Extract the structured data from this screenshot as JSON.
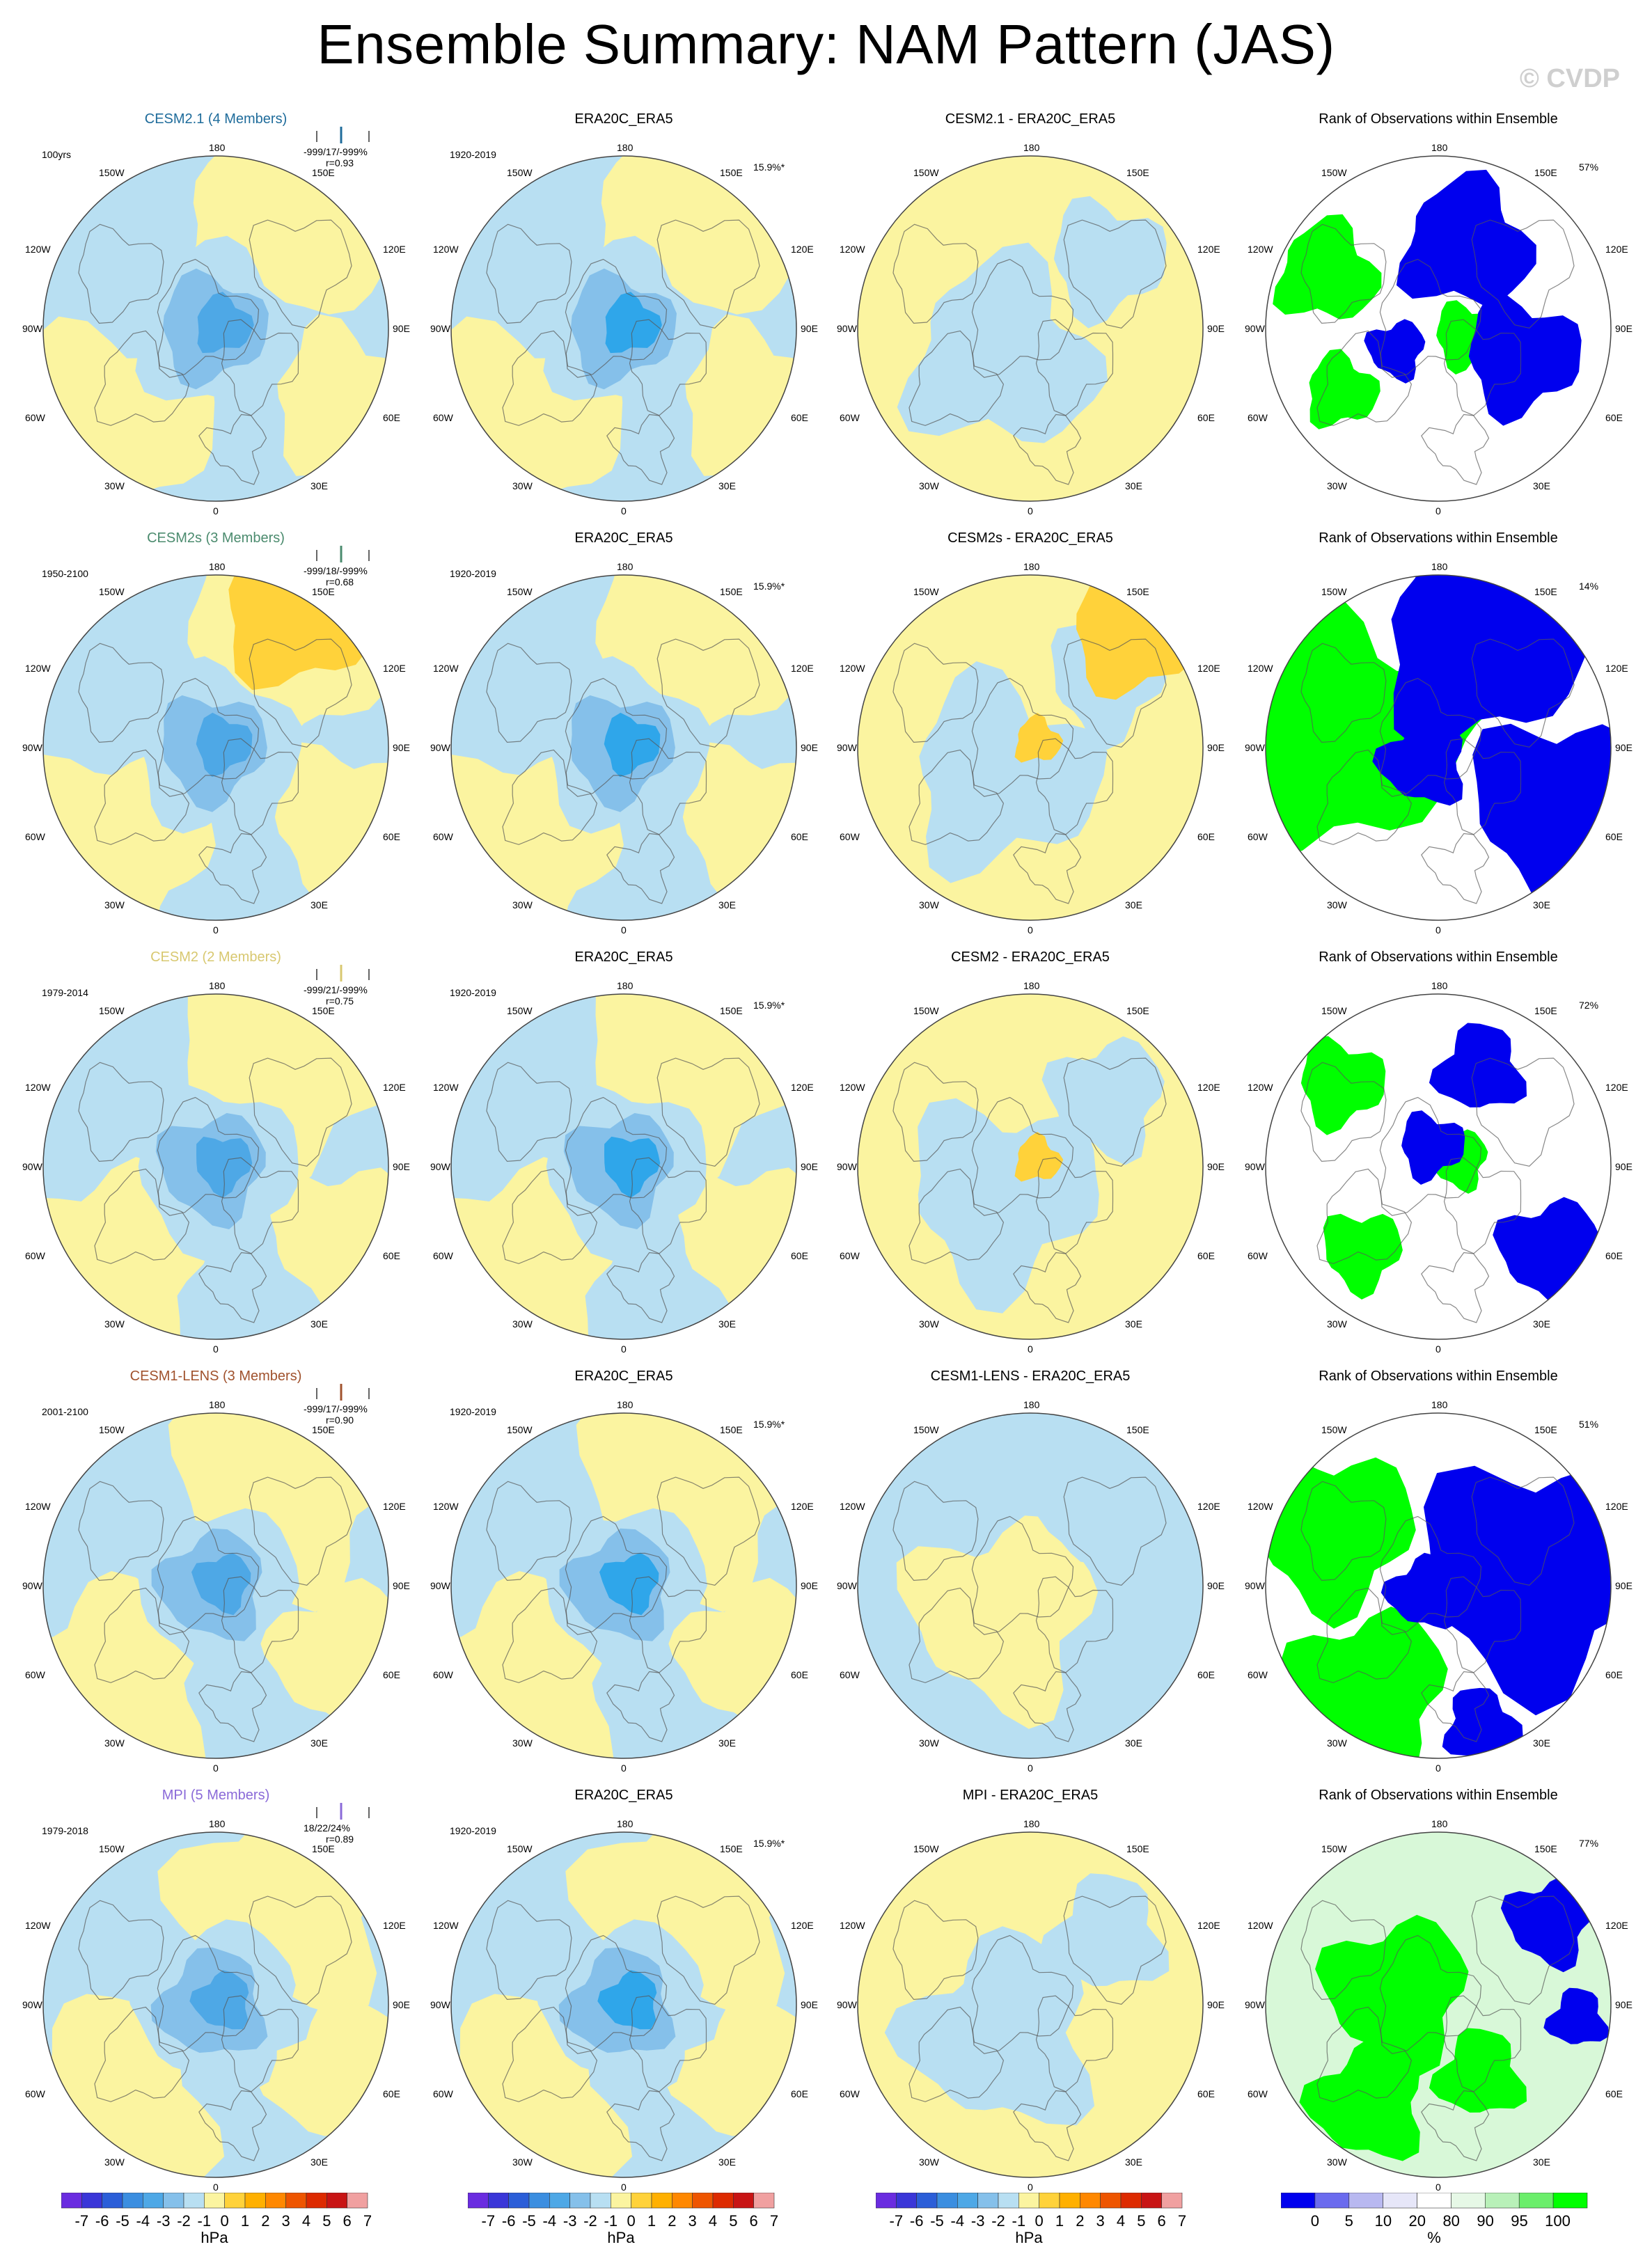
{
  "title": "Ensemble Summary: NAM Pattern (JAS)",
  "watermark": "© CVDP",
  "colors": {
    "ocean_yellow": "#fbf4a0",
    "light_blue": "#b8dff2",
    "mid_blue": "#85c0ea",
    "blue": "#4ea8e6",
    "deep_blue": "#2fa6ea",
    "orange": "#ffd23a",
    "rank_green": "#00ff00",
    "rank_blue": "#0000ee",
    "rank_light_green": "#d8f8d8"
  },
  "rows": [
    {
      "model": "CESM2.1 (4 Members)",
      "model_color": "#1f6c9b",
      "years": "100yrs",
      "stats": "-999/17/-999%",
      "r": "r=0.93",
      "obs_title": "ERA20C_ERA5",
      "obs_years": "1920-2019",
      "obs_pct": "15.9%*",
      "diff_title": "CESM2.1 - ERA20C_ERA5",
      "rank_title": "Rank of Observations within Ensemble",
      "rank_pct": "57%"
    },
    {
      "model": "CESM2s (3 Members)",
      "model_color": "#4b8b6e",
      "years": "1950-2100",
      "stats": "-999/18/-999%",
      "r": "r=0.68",
      "obs_title": "ERA20C_ERA5",
      "obs_years": "1920-2019",
      "obs_pct": "15.9%*",
      "diff_title": "CESM2s - ERA20C_ERA5",
      "rank_title": "Rank of Observations within Ensemble",
      "rank_pct": "14%"
    },
    {
      "model": "CESM2 (2 Members)",
      "model_color": "#d8c870",
      "years": "1979-2014",
      "stats": "-999/21/-999%",
      "r": "r=0.75",
      "obs_title": "ERA20C_ERA5",
      "obs_years": "1920-2019",
      "obs_pct": "15.9%*",
      "diff_title": "CESM2 - ERA20C_ERA5",
      "rank_title": "Rank of Observations within Ensemble",
      "rank_pct": "72%"
    },
    {
      "model": "CESM1-LENS (3 Members)",
      "model_color": "#a0522d",
      "years": "2001-2100",
      "stats": "-999/17/-999%",
      "r": "r=0.90",
      "obs_title": "ERA20C_ERA5",
      "obs_years": "1920-2019",
      "obs_pct": "15.9%*",
      "diff_title": "CESM1-LENS - ERA20C_ERA5",
      "rank_title": "Rank of Observations within Ensemble",
      "rank_pct": "51%"
    },
    {
      "model": "MPI (5 Members)",
      "model_color": "#8a6ad8",
      "years": "1979-2018",
      "stats": "18/22/24%",
      "r": "r=0.89",
      "obs_title": "ERA20C_ERA5",
      "obs_years": "1920-2019",
      "obs_pct": "15.9%*",
      "diff_title": "MPI - ERA20C_ERA5",
      "rank_title": "Rank of Observations within Ensemble",
      "rank_pct": "77%"
    }
  ],
  "lon_labels": {
    "top": "180",
    "bottom": "0",
    "tl": "150W",
    "tr": "150E",
    "ul": "120W",
    "ur": "120E",
    "ml": "90W",
    "mr": "90E",
    "ll": "60W",
    "lr": "60E",
    "bl": "30W",
    "br": "30E"
  },
  "colorbar_hpa": {
    "labels": [
      "-7",
      "-6",
      "-5",
      "-4",
      "-3",
      "-2",
      "-1",
      "0",
      "1",
      "2",
      "3",
      "4",
      "5",
      "6",
      "7"
    ],
    "colors": [
      "#6a2ce0",
      "#3a36d8",
      "#2b5ed8",
      "#3b8ee0",
      "#4ea8e6",
      "#85c0ea",
      "#b8dff2",
      "#fbf4a0",
      "#ffd23a",
      "#ffb000",
      "#ff8800",
      "#ee5500",
      "#dd2a00",
      "#c81414",
      "#f0a0a0"
    ],
    "unit": "hPa"
  },
  "colorbar_pct": {
    "labels": [
      "0",
      "5",
      "10",
      "20",
      "80",
      "90",
      "95",
      "100"
    ],
    "colors": [
      "#0000ee",
      "#6b6bee",
      "#b8b8f0",
      "#e6e6f8",
      "#ffffff",
      "#e6f8e6",
      "#b8f0b8",
      "#6bee6b",
      "#00ff00"
    ],
    "unit": "%"
  }
}
